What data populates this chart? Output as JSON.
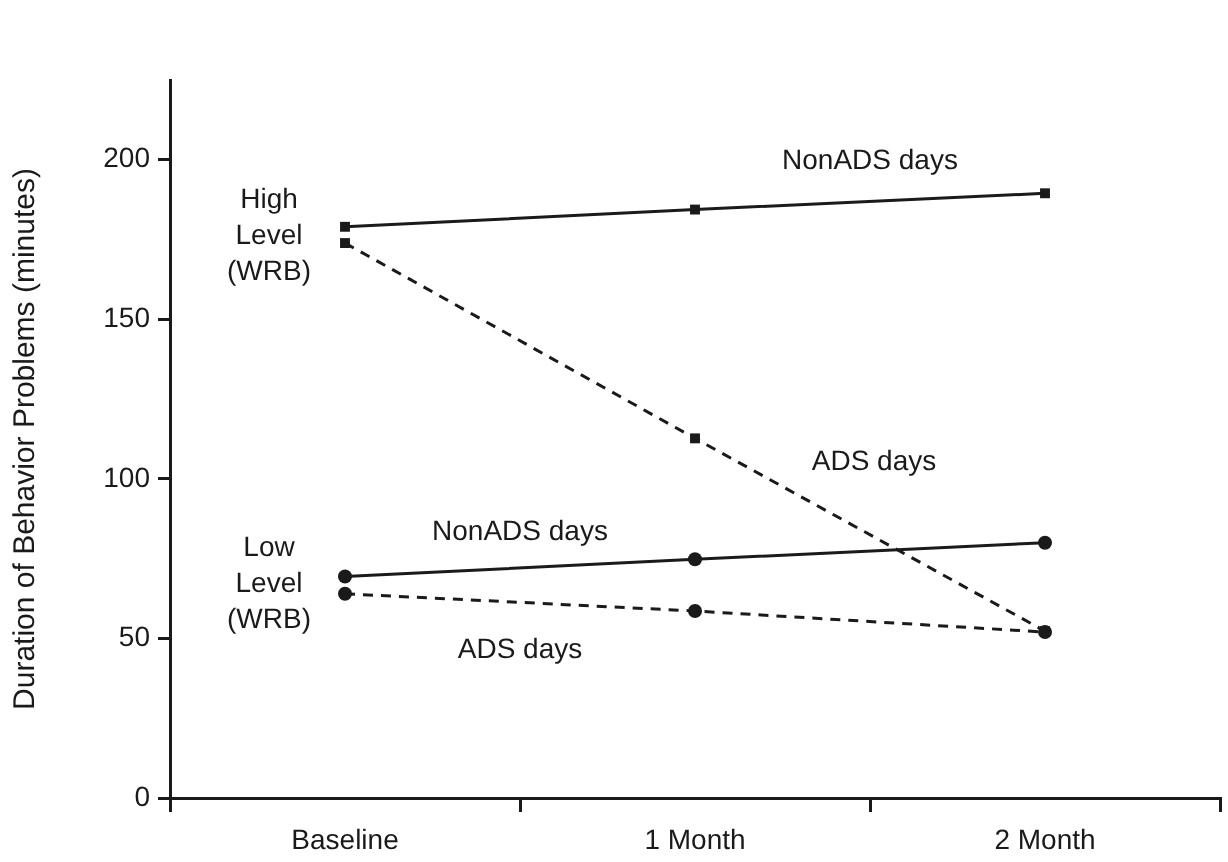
{
  "chart_data": {
    "type": "line",
    "ylabel": "Duration of Behavior Problems (minutes)",
    "categories": [
      "Baseline",
      "1 Month",
      "2 Month"
    ],
    "series": [
      {
        "name": "NonADS days",
        "color": "#1a1a1a",
        "values": [
          179,
          184.4,
          189.5
        ],
        "marker": "square",
        "line_style": "solid"
      },
      {
        "name": "ADS days",
        "color": "#1a1a1a",
        "values": [
          173.9,
          112.7,
          52.3
        ],
        "marker": "square",
        "line_style": "dashed"
      },
      {
        "name": "NonADS days",
        "color": "#1a1a1a",
        "values": [
          69.4,
          74.8,
          80
        ],
        "marker": "circle",
        "line_style": "solid"
      },
      {
        "name": "ADS days",
        "color": "#1a1a1a",
        "values": [
          64,
          58.6,
          52
        ],
        "marker": "circle",
        "line_style": "dashed"
      }
    ],
    "annotations": [
      {
        "text": "High Level (WRB)",
        "x": "Baseline",
        "y": 176
      },
      {
        "text": "Low Level (WRB)",
        "x": "Baseline",
        "y": 67
      }
    ],
    "ylim": [
      0,
      225
    ],
    "yticks": [
      0,
      50,
      100,
      150,
      200
    ],
    "grid": false,
    "legend": false
  }
}
